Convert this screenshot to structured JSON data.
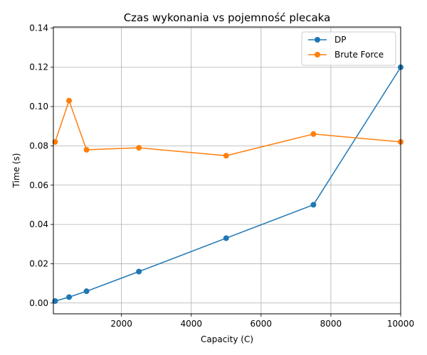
{
  "chart_data": {
    "type": "line",
    "title": "Czas wykonania vs pojemność plecaka",
    "xlabel": "Capacity (C)",
    "ylabel": "Time (s)",
    "xlim": [
      50,
      10000
    ],
    "ylim": [
      -0.0055,
      0.1405
    ],
    "xticks": [
      2000,
      4000,
      6000,
      8000,
      10000
    ],
    "xtick_labels": [
      "2000",
      "4000",
      "6000",
      "8000",
      "10000"
    ],
    "yticks": [
      0.0,
      0.02,
      0.04,
      0.06,
      0.08,
      0.1,
      0.12,
      0.14
    ],
    "ytick_labels": [
      "0.00",
      "0.02",
      "0.04",
      "0.06",
      "0.08",
      "0.10",
      "0.12",
      "0.14"
    ],
    "grid": true,
    "legend_position": "top-right",
    "x": [
      100,
      500,
      1000,
      2500,
      5000,
      7500,
      10000
    ],
    "series": [
      {
        "name": "DP",
        "color": "#1f77b4",
        "values": [
          0.001,
          0.003,
          0.006,
          0.016,
          0.033,
          0.05,
          0.12
        ]
      },
      {
        "name": "Brute Force",
        "color": "#ff7f0e",
        "values": [
          0.082,
          0.103,
          0.078,
          0.079,
          0.075,
          0.086,
          0.082
        ]
      }
    ]
  }
}
